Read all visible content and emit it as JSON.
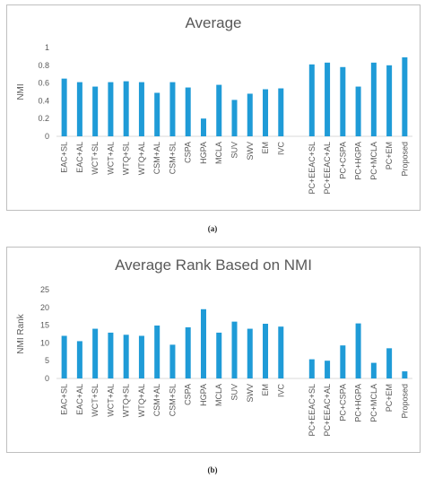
{
  "chart_data": [
    {
      "type": "bar",
      "title": "Average",
      "ylabel": "NMI",
      "xlabel": "",
      "ylim": [
        0,
        1
      ],
      "yticks": [
        "0",
        "0.2",
        "0.4",
        "0.6",
        "0.8",
        "1"
      ],
      "ytick_values": [
        0,
        0.2,
        0.4,
        0.6,
        0.8,
        1
      ],
      "grid": false,
      "categories": [
        "EAC+SL",
        "EAC+AL",
        "WCT+SL",
        "WCT+AL",
        "WTQ+SL",
        "WTQ+AL",
        "CSM+AL",
        "CSM+SL",
        "CSPA",
        "HGPA",
        "MCLA",
        "SUV",
        "SWV",
        "EM",
        "IVC",
        "",
        "PC+EEAC+SL",
        "PC+EEAC+AL",
        "PC+CSPA",
        "PC+HGPA",
        "PC+MCLA",
        "PC+EM",
        "Proposed"
      ],
      "values": [
        0.65,
        0.61,
        0.56,
        0.61,
        0.62,
        0.61,
        0.49,
        0.61,
        0.55,
        0.2,
        0.58,
        0.41,
        0.48,
        0.53,
        0.54,
        null,
        0.81,
        0.83,
        0.78,
        0.56,
        0.83,
        0.8,
        0.89
      ],
      "color": "#1f9bd7",
      "caption": "(a)"
    },
    {
      "type": "bar",
      "title": "Average Rank Based on NMI",
      "ylabel": "NMI Rank",
      "xlabel": "",
      "ylim": [
        0,
        25
      ],
      "yticks": [
        "0",
        "5",
        "10",
        "15",
        "20",
        "25"
      ],
      "ytick_values": [
        0,
        5,
        10,
        15,
        20,
        25
      ],
      "grid": false,
      "categories": [
        "EAC+SL",
        "EAC+AL",
        "WCT+SL",
        "WCT+AL",
        "WTQ+SL",
        "WTQ+AL",
        "CSM+AL",
        "CSM+SL",
        "CSPA",
        "HGPA",
        "MCLA",
        "SUV",
        "SWV",
        "EM",
        "IVC",
        "",
        "PC+EEAC+SL",
        "PC+EEAC+AL",
        "PC+CSPA",
        "PC+HGPA",
        "PC+MCLA",
        "PC+EM",
        "Proposed"
      ],
      "values": [
        12,
        10.5,
        14,
        12.9,
        12.3,
        12,
        14.9,
        9.5,
        14.4,
        19.5,
        12.9,
        16,
        14,
        15.4,
        14.6,
        null,
        5.4,
        5,
        9.3,
        15.5,
        4.4,
        8.5,
        2
      ],
      "color": "#1f9bd7",
      "caption": "(b)"
    }
  ]
}
